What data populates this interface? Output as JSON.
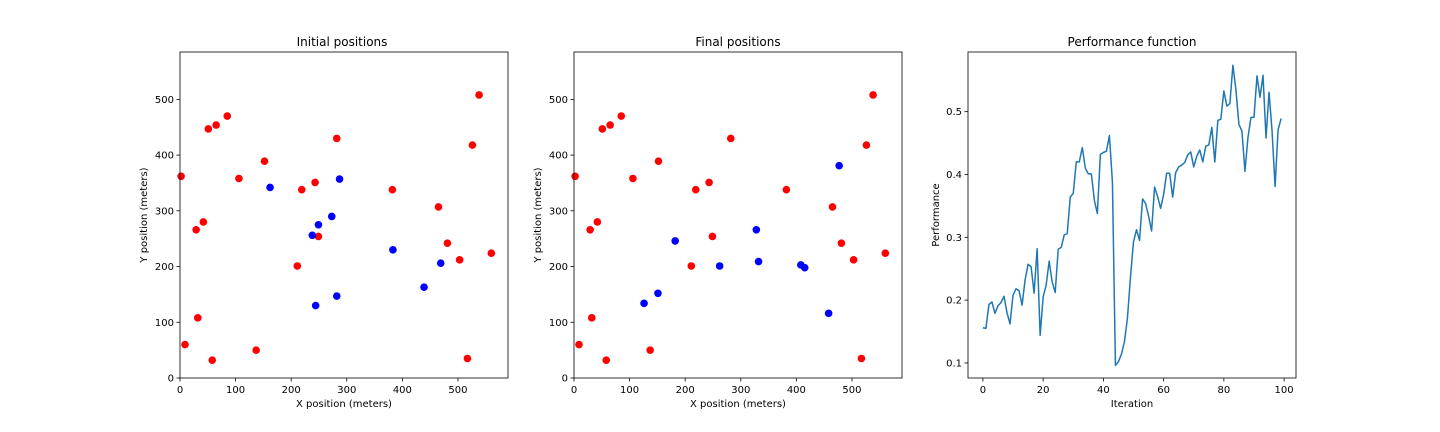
{
  "chart_data": [
    {
      "type": "scatter",
      "title": "Initial positions",
      "xlabel": "X position (meters)",
      "ylabel": "Y position (meters)",
      "xlim": [
        0,
        590
      ],
      "ylim": [
        0,
        585
      ],
      "xticks": [
        0,
        100,
        200,
        300,
        400,
        500
      ],
      "yticks": [
        0,
        100,
        200,
        300,
        400,
        500
      ],
      "grid": false,
      "series": [
        {
          "name": "red",
          "color": "#ff0000",
          "points": [
            [
              2,
              362
            ],
            [
              9,
              60
            ],
            [
              29,
              266
            ],
            [
              32,
              108
            ],
            [
              42,
              280
            ],
            [
              51,
              447
            ],
            [
              58,
              32
            ],
            [
              65,
              454
            ],
            [
              85,
              470
            ],
            [
              106,
              358
            ],
            [
              137,
              50
            ],
            [
              152,
              389
            ],
            [
              211,
              201
            ],
            [
              219,
              338
            ],
            [
              243,
              351
            ],
            [
              249,
              254
            ],
            [
              282,
              430
            ],
            [
              382,
              338
            ],
            [
              465,
              307
            ],
            [
              481,
              242
            ],
            [
              503,
              212
            ],
            [
              517,
              35
            ],
            [
              526,
              418
            ],
            [
              538,
              508
            ],
            [
              560,
              224
            ]
          ]
        },
        {
          "name": "blue",
          "color": "#0000ff",
          "points": [
            [
              162,
              342
            ],
            [
              238,
              256
            ],
            [
              244,
              130
            ],
            [
              249,
              275
            ],
            [
              273,
              290
            ],
            [
              282,
              147
            ],
            [
              287,
              357
            ],
            [
              383,
              230
            ],
            [
              439,
              163
            ],
            [
              469,
              206
            ]
          ]
        }
      ]
    },
    {
      "type": "scatter",
      "title": "Final positions",
      "xlabel": "X position (meters)",
      "ylabel": "Y position (meters)",
      "xlim": [
        0,
        590
      ],
      "ylim": [
        0,
        585
      ],
      "xticks": [
        0,
        100,
        200,
        300,
        400,
        500
      ],
      "yticks": [
        0,
        100,
        200,
        300,
        400,
        500
      ],
      "grid": false,
      "series": [
        {
          "name": "red",
          "color": "#ff0000",
          "points": [
            [
              2,
              362
            ],
            [
              9,
              60
            ],
            [
              29,
              266
            ],
            [
              32,
              108
            ],
            [
              42,
              280
            ],
            [
              51,
              447
            ],
            [
              58,
              32
            ],
            [
              65,
              454
            ],
            [
              85,
              470
            ],
            [
              106,
              358
            ],
            [
              137,
              50
            ],
            [
              152,
              389
            ],
            [
              211,
              201
            ],
            [
              219,
              338
            ],
            [
              243,
              351
            ],
            [
              249,
              254
            ],
            [
              282,
              430
            ],
            [
              382,
              338
            ],
            [
              465,
              307
            ],
            [
              481,
              242
            ],
            [
              503,
              212
            ],
            [
              517,
              35
            ],
            [
              526,
              418
            ],
            [
              538,
              508
            ],
            [
              560,
              224
            ]
          ]
        },
        {
          "name": "blue",
          "color": "#0000ff",
          "points": [
            [
              126,
              134
            ],
            [
              151,
              152
            ],
            [
              182,
              246
            ],
            [
              262,
              201
            ],
            [
              328,
              266
            ],
            [
              332,
              209
            ],
            [
              408,
              203
            ],
            [
              415,
              198
            ],
            [
              458,
              116
            ],
            [
              477,
              381
            ]
          ]
        }
      ]
    },
    {
      "type": "line",
      "title": "Performance function",
      "xlabel": "Iteration",
      "ylabel": "Performance",
      "xlim": [
        -4.95,
        103.95
      ],
      "ylim": [
        0.076,
        0.595
      ],
      "xticks": [
        0,
        20,
        40,
        60,
        80,
        100
      ],
      "yticks": [
        0.1,
        0.2,
        0.3,
        0.4,
        0.5
      ],
      "ytick_labels": [
        "0.1",
        "0.2",
        "0.3",
        "0.4",
        "0.5"
      ],
      "grid": false,
      "series": [
        {
          "name": "performance",
          "color": "#1f77b4",
          "x": [
            0,
            1,
            2,
            3,
            4,
            5,
            6,
            7,
            8,
            9,
            10,
            11,
            12,
            13,
            14,
            15,
            16,
            17,
            18,
            19,
            20,
            21,
            22,
            23,
            24,
            25,
            26,
            27,
            28,
            29,
            30,
            31,
            32,
            33,
            34,
            35,
            36,
            37,
            38,
            39,
            40,
            41,
            42,
            43,
            44,
            45,
            46,
            47,
            48,
            49,
            50,
            51,
            52,
            53,
            54,
            55,
            56,
            57,
            58,
            59,
            60,
            61,
            62,
            63,
            64,
            65,
            66,
            67,
            68,
            69,
            70,
            71,
            72,
            73,
            74,
            75,
            76,
            77,
            78,
            79,
            80,
            81,
            82,
            83,
            84,
            85,
            86,
            87,
            88,
            89,
            90,
            91,
            92,
            93,
            94,
            95,
            96,
            97,
            98,
            99
          ],
          "values": [
            0.156,
            0.155,
            0.193,
            0.197,
            0.179,
            0.191,
            0.196,
            0.206,
            0.18,
            0.162,
            0.208,
            0.218,
            0.215,
            0.192,
            0.232,
            0.257,
            0.253,
            0.211,
            0.282,
            0.144,
            0.205,
            0.224,
            0.262,
            0.229,
            0.212,
            0.281,
            0.284,
            0.304,
            0.306,
            0.364,
            0.37,
            0.42,
            0.42,
            0.443,
            0.41,
            0.401,
            0.401,
            0.359,
            0.338,
            0.432,
            0.435,
            0.437,
            0.462,
            0.388,
            0.096,
            0.102,
            0.114,
            0.134,
            0.172,
            0.237,
            0.293,
            0.312,
            0.295,
            0.361,
            0.354,
            0.334,
            0.31,
            0.38,
            0.365,
            0.346,
            0.368,
            0.402,
            0.402,
            0.364,
            0.403,
            0.412,
            0.415,
            0.419,
            0.431,
            0.436,
            0.412,
            0.429,
            0.439,
            0.42,
            0.445,
            0.447,
            0.475,
            0.42,
            0.486,
            0.488,
            0.533,
            0.509,
            0.513,
            0.574,
            0.535,
            0.48,
            0.469,
            0.405,
            0.459,
            0.491,
            0.491,
            0.557,
            0.523,
            0.558,
            0.458,
            0.531,
            0.469,
            0.381,
            0.471,
            0.489
          ]
        }
      ]
    }
  ]
}
